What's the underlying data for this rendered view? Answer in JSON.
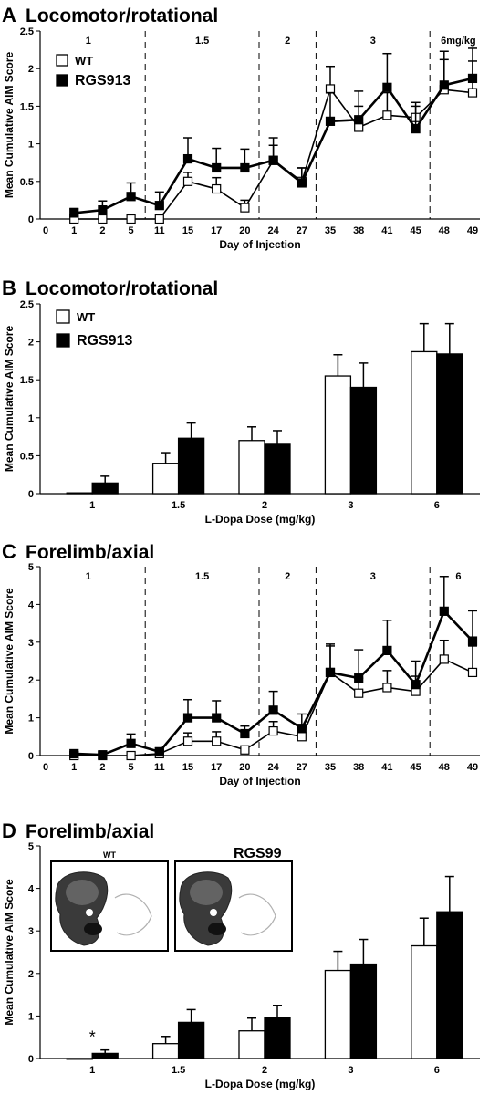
{
  "panels": [
    {
      "letter": "A",
      "title": "Locomotor/rotational",
      "type": "line",
      "ylabel": "Mean Cumulative AIM Score",
      "xlabel": "Day of Injection",
      "ylim": [
        0,
        2.5
      ],
      "yticks": [
        "0",
        "0.5",
        "1",
        "1.5",
        "2",
        "2.5"
      ],
      "x_labels": [
        "0",
        "1",
        "2",
        "5",
        "11",
        "15",
        "17",
        "20",
        "24",
        "27",
        "35",
        "38",
        "41",
        "45",
        "48",
        "49"
      ],
      "dose_labels": [
        "1",
        "1.5",
        "2",
        "3",
        "6mg/kg"
      ],
      "legend": [
        {
          "label": "WT",
          "marker": "open"
        },
        {
          "label": "RGS9",
          "sup": "-/-",
          "marker": "filled"
        }
      ],
      "series": [
        {
          "name": "WT",
          "values": [
            0,
            0,
            0,
            0,
            0.5,
            0.4,
            0.15,
            0.78,
            0.5,
            1.73,
            1.22,
            1.38,
            1.35,
            1.72,
            1.68
          ],
          "errors": [
            0,
            0,
            0,
            0,
            0.12,
            0.15,
            0.1,
            0.2,
            0.18,
            0.3,
            0.28,
            0.3,
            0.2,
            0.4,
            0.42
          ]
        },
        {
          "name": "RGS9-/-",
          "values": [
            0.08,
            0.12,
            0.3,
            0.18,
            0.8,
            0.68,
            0.68,
            0.78,
            0.48,
            1.3,
            1.32,
            1.75,
            1.2,
            1.78,
            1.87
          ],
          "errors": [
            0.06,
            0.12,
            0.18,
            0.18,
            0.28,
            0.26,
            0.25,
            0.3,
            0.2,
            0.38,
            0.38,
            0.45,
            0.3,
            0.45,
            0.4
          ]
        }
      ]
    },
    {
      "letter": "B",
      "title": "Locomotor/rotational",
      "type": "bar",
      "ylabel": "Mean Cumulative AIM Score",
      "xlabel": "L-Dopa Dose (mg/kg)",
      "ylim": [
        0,
        2.5
      ],
      "yticks": [
        "0",
        "0.5",
        "1",
        "1.5",
        "2",
        "2.5"
      ],
      "categories": [
        "1",
        "1.5",
        "2",
        "3",
        "6"
      ],
      "legend": [
        {
          "label": "WT",
          "marker": "open"
        },
        {
          "label": "RGS9",
          "sup": "-/-",
          "marker": "filled"
        }
      ],
      "series": [
        {
          "name": "WT",
          "values": [
            0.01,
            0.4,
            0.7,
            1.55,
            1.87
          ],
          "errors": [
            0,
            0.14,
            0.18,
            0.28,
            0.37
          ]
        },
        {
          "name": "RGS9-/-",
          "values": [
            0.14,
            0.73,
            0.65,
            1.4,
            1.84
          ],
          "errors": [
            0.09,
            0.2,
            0.18,
            0.32,
            0.4
          ]
        }
      ]
    },
    {
      "letter": "C",
      "title": "Forelimb/axial",
      "type": "line",
      "ylabel": "Mean Cumulative AIM Score",
      "xlabel": "Day of Injection",
      "ylim": [
        0,
        5
      ],
      "yticks": [
        "0",
        "1",
        "2",
        "3",
        "4",
        "5"
      ],
      "x_labels": [
        "0",
        "1",
        "2",
        "5",
        "11",
        "15",
        "17",
        "20",
        "24",
        "27",
        "35",
        "38",
        "41",
        "45",
        "48",
        "49"
      ],
      "dose_labels": [
        "1",
        "1.5",
        "2",
        "3",
        "6"
      ],
      "series": [
        {
          "name": "WT",
          "values": [
            0,
            0,
            0,
            0.05,
            0.38,
            0.38,
            0.15,
            0.65,
            0.5,
            2.2,
            1.65,
            1.8,
            1.7,
            2.55,
            2.2
          ],
          "errors": [
            0,
            0,
            0,
            0.05,
            0.22,
            0.25,
            0.1,
            0.25,
            0.2,
            0.7,
            0.4,
            0.45,
            0.4,
            0.5,
            0.7
          ]
        },
        {
          "name": "RGS9-/-",
          "values": [
            0.05,
            0.02,
            0.32,
            0.1,
            1.0,
            1.0,
            0.58,
            1.2,
            0.72,
            2.2,
            2.05,
            2.78,
            1.88,
            3.82,
            3.03
          ],
          "errors": [
            0.05,
            0.04,
            0.25,
            0.1,
            0.48,
            0.45,
            0.2,
            0.5,
            0.38,
            0.75,
            0.75,
            0.8,
            0.62,
            0.92,
            0.8
          ]
        }
      ]
    },
    {
      "letter": "D",
      "title": "Forelimb/axial",
      "type": "bar",
      "ylabel": "Mean Cumulative AIM Score",
      "xlabel": "L-Dopa Dose (mg/kg)",
      "ylim": [
        0,
        5
      ],
      "yticks": [
        "0",
        "1",
        "2",
        "3",
        "4",
        "5"
      ],
      "categories": [
        "1",
        "1.5",
        "2",
        "3",
        "6"
      ],
      "annotation": "*",
      "inset_labels": [
        {
          "label": "WT"
        },
        {
          "label": "RGS9",
          "sup": "-/-"
        }
      ],
      "series": [
        {
          "name": "WT",
          "values": [
            0.0,
            0.35,
            0.65,
            2.07,
            2.65
          ],
          "errors": [
            0,
            0.17,
            0.3,
            0.45,
            0.65
          ]
        },
        {
          "name": "RGS9-/-",
          "values": [
            0.12,
            0.85,
            0.97,
            2.22,
            3.45
          ],
          "errors": [
            0.08,
            0.3,
            0.28,
            0.58,
            0.83
          ]
        }
      ]
    }
  ]
}
